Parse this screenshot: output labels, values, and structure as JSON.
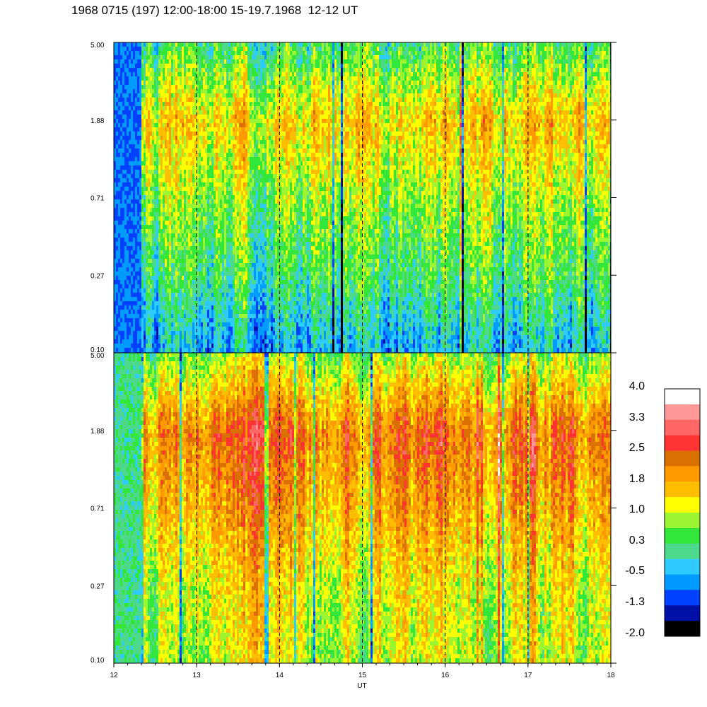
{
  "title": "1968 0715 (197) 12:00-18:00 15-19.7.1968  12-12 UT",
  "colors": {
    "frame": "#000000",
    "scale": [
      "#000000",
      "#000fa8",
      "#0040ff",
      "#009bff",
      "#2ecbff",
      "#4cd98c",
      "#33e63a",
      "#9bf531",
      "#ffff00",
      "#ffbf00",
      "#ff9900",
      "#d97000",
      "#ff3333",
      "#ff6666",
      "#ff9999",
      "#ffffff"
    ]
  },
  "chart_data": [
    {
      "type": "heatmap",
      "panel": "upper",
      "x_range": [
        12,
        18
      ],
      "y_ticks": [
        "5.00",
        "1.88",
        "0.71",
        "0.27",
        "0.10"
      ],
      "y_scale": "log",
      "vertical_markers_at_hour": [
        13,
        14,
        15,
        16,
        17
      ],
      "band_levels_by_y_tick": {
        "5.00": 0.3,
        "1.88": 1.5,
        "0.71": 0.8,
        "0.27": 0.3,
        "0.10": -0.5
      },
      "low_level_interval_hours": [
        12.0,
        12.33
      ]
    },
    {
      "type": "heatmap",
      "panel": "lower",
      "x_range": [
        12,
        18
      ],
      "x_ticks": [
        "12",
        "13",
        "14",
        "15",
        "16",
        "17",
        "18"
      ],
      "xlabel": "UT",
      "y_ticks": [
        "5.00",
        "1.88",
        "0.71",
        "0.27",
        "0.10"
      ],
      "y_scale": "log",
      "vertical_markers_at_hour": [
        13,
        14,
        15,
        16,
        17
      ],
      "band_levels_by_y_tick": {
        "5.00": 0.8,
        "1.88": 2.3,
        "0.71": 1.8,
        "0.27": 1.2,
        "0.10": 1.0
      },
      "low_level_interval_hours": [
        12.0,
        12.33
      ]
    },
    {
      "type": "table",
      "panel": "colorbar",
      "labels": [
        "4.0",
        "3.3",
        "2.5",
        "1.8",
        "1.0",
        "0.3",
        "-0.5",
        "-1.3",
        "-2.0"
      ],
      "range": [
        -2.0,
        4.0
      ]
    }
  ]
}
